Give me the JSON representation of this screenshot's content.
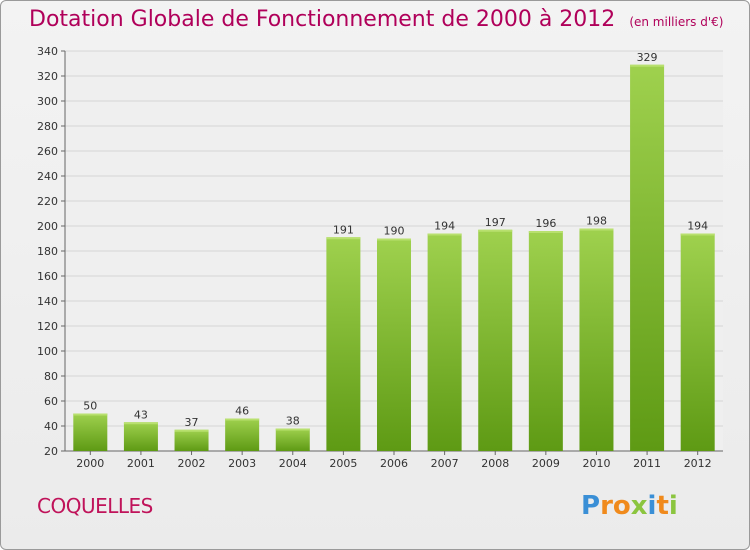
{
  "title": "Dotation Globale de Fonctionnement de 2000 à 2012",
  "unit_note": "(en milliers d'€)",
  "commune": "COQUELLES",
  "logo": {
    "text": "Proxiti",
    "letters": [
      {
        "ch": "P",
        "color": "#3a8fd6"
      },
      {
        "ch": "r",
        "color": "#f08a1c"
      },
      {
        "ch": "o",
        "color": "#f08a1c"
      },
      {
        "ch": "x",
        "color": "#8bc53f"
      },
      {
        "ch": "i",
        "color": "#3a8fd6"
      },
      {
        "ch": "t",
        "color": "#f08a1c"
      },
      {
        "ch": "i",
        "color": "#8bc53f"
      }
    ]
  },
  "colors": {
    "title": "#b0005a",
    "bar_top": "#9fd14e",
    "bar_bottom": "#5e9a14",
    "grid": "#d6d6d6"
  },
  "chart_data": {
    "type": "bar",
    "title": "Dotation Globale de Fonctionnement de 2000 à 2012",
    "subtitle": "(en milliers d'€)",
    "categories": [
      "2000",
      "2001",
      "2002",
      "2003",
      "2004",
      "2005",
      "2006",
      "2007",
      "2008",
      "2009",
      "2010",
      "2011",
      "2012"
    ],
    "values": [
      50,
      43,
      37,
      46,
      38,
      191,
      190,
      194,
      197,
      196,
      198,
      329,
      194
    ],
    "ylim": [
      20,
      340
    ],
    "yticks": [
      20,
      40,
      60,
      80,
      100,
      120,
      140,
      160,
      180,
      200,
      220,
      240,
      260,
      280,
      300,
      320,
      340
    ],
    "grid": true,
    "data_labels": true,
    "xlabel": "",
    "ylabel": ""
  }
}
